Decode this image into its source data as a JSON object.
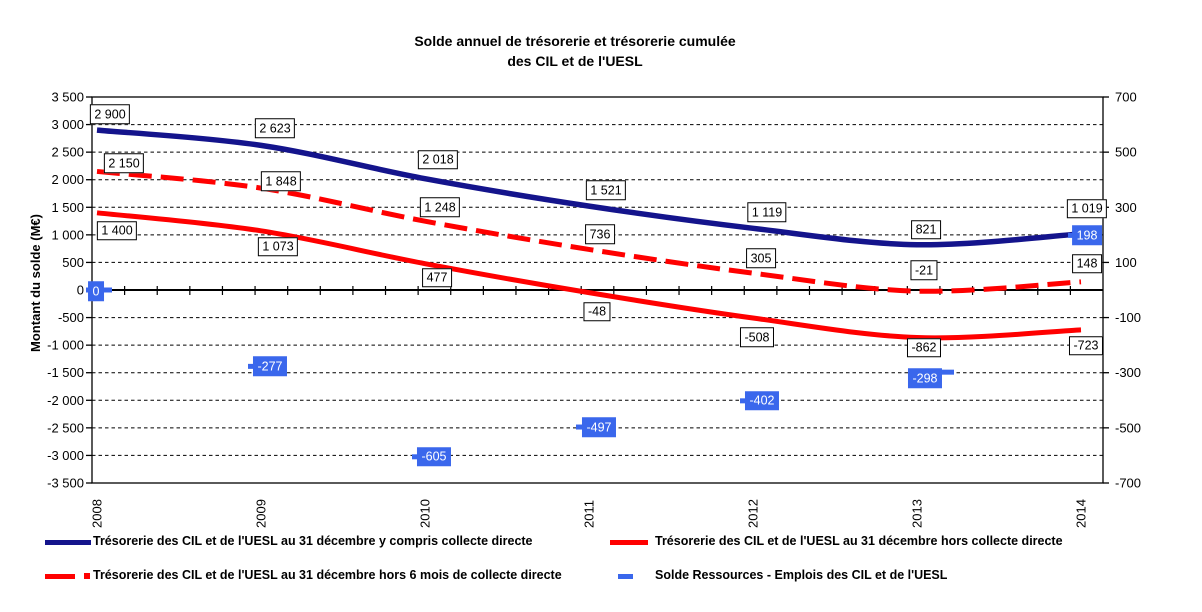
{
  "title": {
    "line1": "Solde annuel de trésorerie et trésorerie cumulée",
    "line2": "des CIL et de l'UESL"
  },
  "chart_data": {
    "type": "line",
    "categories": [
      "2008",
      "2009",
      "2010",
      "2011",
      "2012",
      "2013",
      "2014"
    ],
    "y_axis_left": {
      "title": "Montant du solde (M€)",
      "min": -3500,
      "max": 3500,
      "step": 500,
      "tick_labels": [
        "3 500",
        "3 000",
        "2 500",
        "2 000",
        "1 500",
        "1 000",
        "500",
        "0",
        "-500",
        "-1 000",
        "-1 500",
        "-2 000",
        "-2 500",
        "-3 000",
        "-3 500"
      ]
    },
    "y_axis_right": {
      "min": -700,
      "max": 700,
      "step": 200,
      "tick_labels": [
        "700",
        "500",
        "300",
        "100",
        "-100",
        "-300",
        "-500",
        "-700"
      ]
    },
    "grid": true,
    "legend_position": "bottom",
    "series": [
      {
        "name": "Trésorerie des CIL et de l'UESL au 31 décembre y compris collecte directe",
        "axis": "left",
        "style": "solid",
        "color": "#14148C",
        "values": [
          2900,
          2623,
          2018,
          1521,
          1119,
          821,
          1019
        ],
        "labels": [
          "2 900",
          "2 623",
          "2 018",
          "1 521",
          "1 119",
          "821",
          "1 019"
        ],
        "label_style": "boxed"
      },
      {
        "name": "Trésorerie des CIL et de l'UESL au 31 décembre hors collecte directe",
        "axis": "left",
        "style": "solid",
        "color": "#FF0000",
        "values": [
          1400,
          1073,
          477,
          -48,
          -508,
          -862,
          -723
        ],
        "labels": [
          "1 400",
          "1 073",
          "477",
          "-48",
          "-508",
          "-862",
          "-723"
        ],
        "label_style": "boxed"
      },
      {
        "name": "Trésorerie des CIL et de l'UESL au 31 décembre hors 6 mois de collecte directe",
        "axis": "left",
        "style": "dashed",
        "color": "#FF0000",
        "values": [
          2150,
          1848,
          1248,
          736,
          305,
          -21,
          148
        ],
        "labels": [
          "2 150",
          "1 848",
          "1 248",
          "736",
          "305",
          "-21",
          "148"
        ],
        "label_style": "boxed"
      },
      {
        "name": "Solde Ressources - Emplois des CIL et de l'UESL",
        "axis": "right",
        "style": "marker",
        "color": "#3A67EC",
        "values": [
          0,
          -277,
          -605,
          -497,
          -402,
          -298,
          198
        ],
        "labels": [
          "0",
          "-277",
          "-605",
          "-497",
          "-402",
          "-298",
          "198"
        ],
        "label_style": "filled"
      }
    ]
  },
  "legend": {
    "items": [
      {
        "label": "Trésorerie des CIL et de l'UESL au 31 décembre y compris collecte directe"
      },
      {
        "label": "Trésorerie des CIL et de l'UESL au 31 décembre hors collecte directe"
      },
      {
        "label": "Trésorerie des CIL et de l'UESL au 31 décembre hors 6 mois de collecte directe"
      },
      {
        "label": "Solde Ressources - Emplois des CIL et de l'UESL"
      }
    ]
  }
}
